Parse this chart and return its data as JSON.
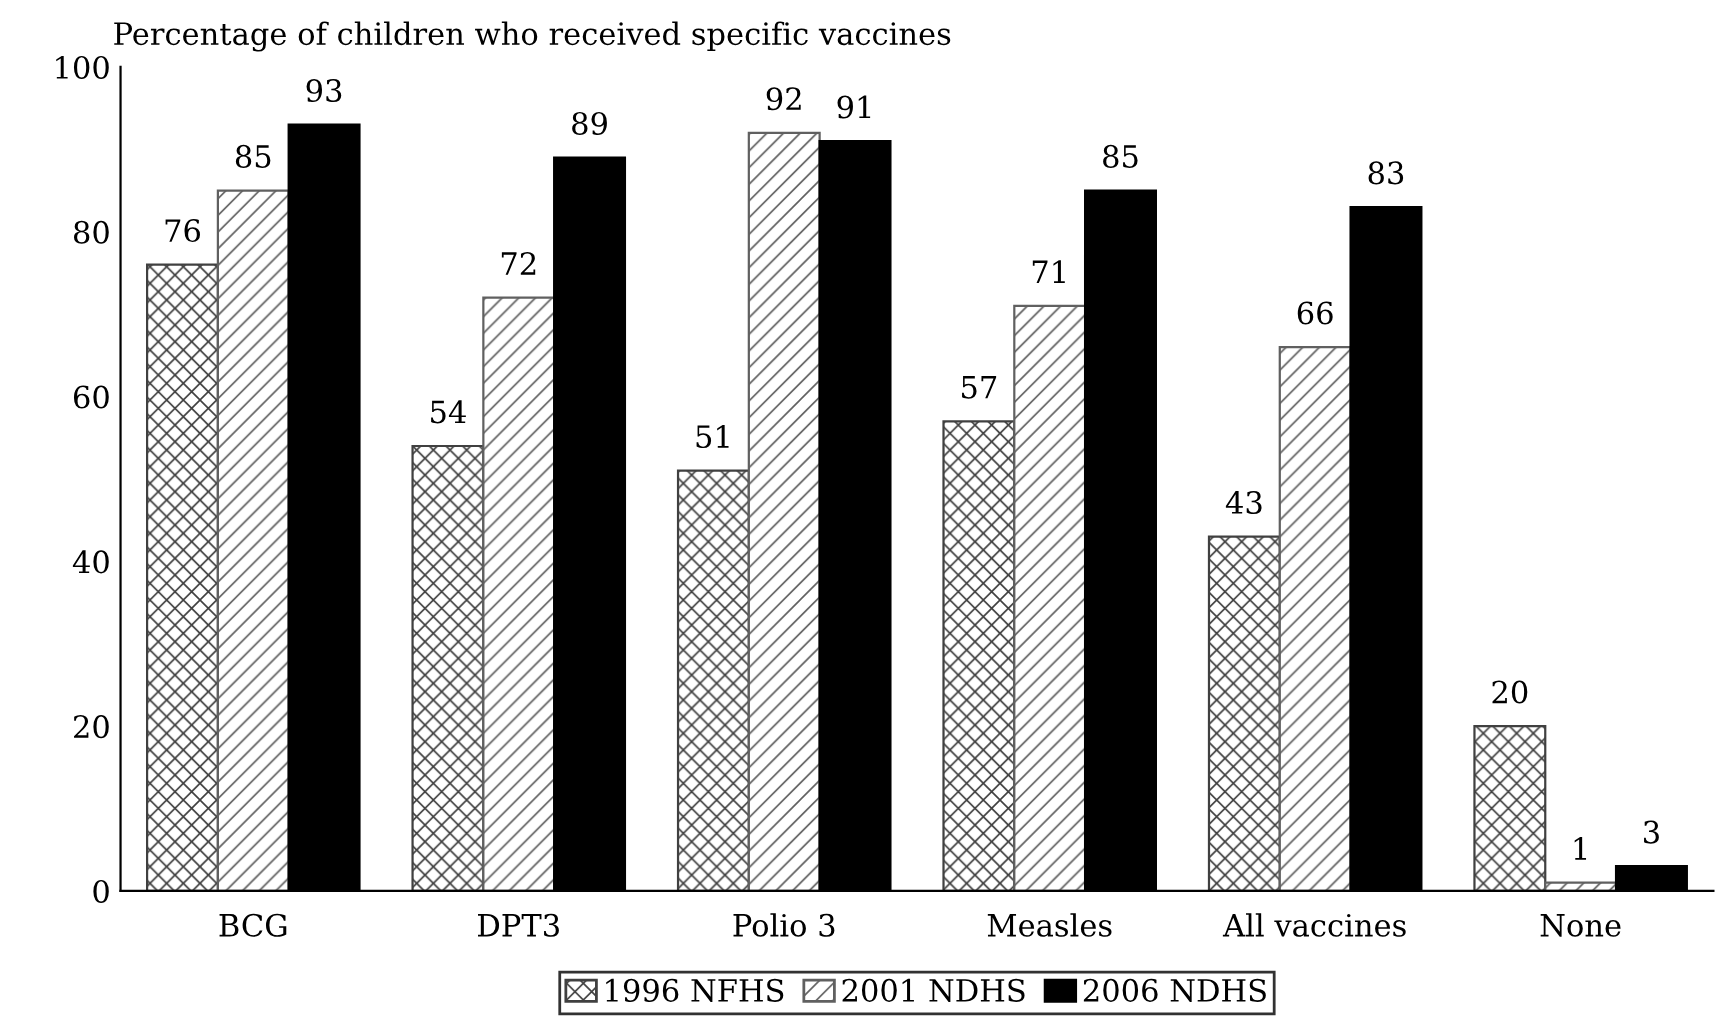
{
  "chart_data": {
    "type": "bar",
    "title": "Percentage of children who received specific vaccines",
    "categories": [
      "BCG",
      "DPT3",
      "Polio 3",
      "Measles",
      "All vaccines",
      "None"
    ],
    "series": [
      {
        "name": "1996 NFHS",
        "color": "#404040",
        "values": [
          76,
          54,
          51,
          57,
          43,
          20
        ]
      },
      {
        "name": "2001 NDHS",
        "color": "#606060",
        "values": [
          85,
          72,
          92,
          71,
          66,
          1
        ]
      },
      {
        "name": "2006 NDHS",
        "color": "#000000",
        "values": [
          93,
          89,
          91,
          85,
          83,
          3
        ]
      }
    ],
    "ylim": [
      0,
      100
    ],
    "yticks": [
      0,
      20,
      40,
      60,
      80,
      100
    ],
    "grid": false,
    "legend": "bottom",
    "data_labels": true
  }
}
